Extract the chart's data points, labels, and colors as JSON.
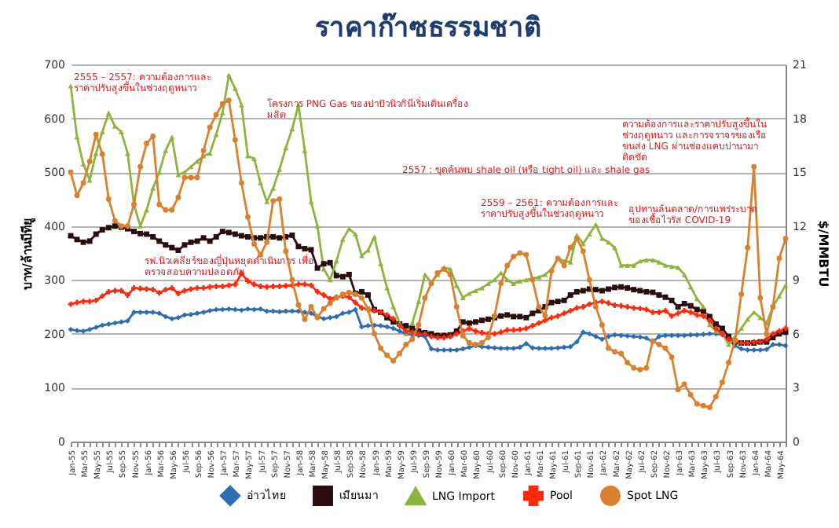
{
  "chart_data": {
    "type": "line",
    "title": "ราคาก๊าซธรรมชาติ",
    "ylabel": "บาท/ล้านบีทียู",
    "y2label": "$/MMBTU",
    "categories": [
      "Jan-55",
      null,
      "Mar-55",
      null,
      "May-55",
      null,
      "Jul-55",
      null,
      "Sep-55",
      null,
      "Nov-55",
      null,
      "Jan-56",
      null,
      "Mar-56",
      null,
      "May-56",
      null,
      "Jul-56",
      null,
      "Sep-56",
      null,
      "Nov-56",
      null,
      "Jan-57",
      null,
      "Mar-57",
      null,
      "May-57",
      null,
      "Jul-57",
      null,
      "Sep-57",
      null,
      "Nov-57",
      null,
      "Jan-58",
      null,
      "Mar-58",
      null,
      "May-58",
      null,
      "Jul-58",
      null,
      "Sep-58",
      null,
      "Nov-58",
      null,
      "Jan-59",
      null,
      "Mar-59",
      null,
      "May-59",
      null,
      "Jul-59",
      null,
      "Sep-59",
      null,
      "Nov-59",
      null,
      "Jan-60",
      null,
      "Mar-60",
      null,
      "May-60",
      null,
      "Jul-60",
      null,
      "Sep-60",
      null,
      "Nov-60",
      null,
      "Jan-61",
      null,
      "Mar-61",
      null,
      "May-61",
      null,
      "Jul-61",
      null,
      "Sep-61",
      null,
      "Nov-61",
      null,
      "Jan-62",
      null,
      "Mar-62",
      null,
      "May-62",
      null,
      "Jul-62",
      null,
      "Sep-62",
      null,
      "Nov-62",
      null,
      "Jan-63",
      null,
      "Mar-63",
      null,
      "May-63",
      null,
      "Jul-63",
      null,
      "Sep-63",
      null,
      "Nov-63",
      null,
      "Jan-64",
      null,
      "Mar-64",
      null,
      "May-64",
      null
    ],
    "series": [
      {
        "name": "อ่าวไทย",
        "color": "#2e6db4",
        "marker": "diamond",
        "values": [
          208,
          206,
          205,
          208,
          212,
          216,
          218,
          220,
          222,
          224,
          240,
          240,
          240,
          240,
          238,
          232,
          228,
          230,
          235,
          236,
          238,
          240,
          243,
          245,
          245,
          246,
          245,
          244,
          246,
          245,
          246,
          242,
          242,
          241,
          242,
          242,
          242,
          240,
          238,
          232,
          228,
          230,
          232,
          238,
          240,
          245,
          213,
          215,
          216,
          215,
          213,
          210,
          205,
          200,
          198,
          197,
          195,
          172,
          170,
          170,
          170,
          170,
          172,
          175,
          178,
          176,
          175,
          174,
          173,
          173,
          173,
          175,
          182,
          174,
          173,
          173,
          173,
          174,
          175,
          176,
          185,
          203,
          200,
          195,
          190,
          195,
          198,
          197,
          196,
          195,
          194,
          192,
          185,
          195,
          197,
          197,
          197,
          197,
          198,
          198,
          199,
          200,
          200,
          198,
          190,
          178,
          172,
          170,
          170,
          170,
          171,
          180,
          180,
          178
        ]
      },
      {
        "name": "เมียนมา",
        "color": "#2a0d0d",
        "marker": "square",
        "values": [
          382,
          375,
          370,
          372,
          385,
          393,
          397,
          400,
          398,
          395,
          390,
          386,
          385,
          380,
          372,
          365,
          360,
          355,
          365,
          370,
          372,
          378,
          372,
          380,
          390,
          388,
          385,
          382,
          380,
          378,
          378,
          380,
          380,
          378,
          380,
          383,
          362,
          358,
          356,
          322,
          330,
          332,
          308,
          306,
          310,
          275,
          278,
          272,
          245,
          240,
          230,
          222,
          218,
          215,
          210,
          205,
          202,
          200,
          197,
          197,
          198,
          205,
          222,
          220,
          222,
          225,
          227,
          230,
          233,
          235,
          232,
          232,
          230,
          238,
          243,
          250,
          258,
          260,
          262,
          272,
          278,
          280,
          283,
          282,
          280,
          283,
          286,
          287,
          285,
          282,
          280,
          278,
          277,
          272,
          268,
          262,
          250,
          256,
          252,
          245,
          242,
          232,
          218,
          210,
          195,
          185,
          183,
          183,
          183,
          185,
          185,
          193,
          200,
          203
        ]
      },
      {
        "name": "LNG Import",
        "color": "#8db43e",
        "marker": "triangle",
        "values": [
          660,
          565,
          515,
          485,
          535,
          575,
          610,
          585,
          575,
          535,
          440,
          400,
          430,
          470,
          500,
          540,
          565,
          495,
          500,
          510,
          520,
          530,
          535,
          570,
          610,
          680,
          655,
          625,
          530,
          525,
          480,
          445,
          470,
          505,
          545,
          580,
          625,
          540,
          445,
          400,
          320,
          300,
          335,
          375,
          395,
          385,
          345,
          355,
          380,
          330,
          285,
          250,
          220,
          200,
          220,
          260,
          310,
          295,
          310,
          323,
          320,
          290,
          267,
          275,
          280,
          285,
          293,
          300,
          313,
          300,
          293,
          298,
          300,
          303,
          305,
          310,
          320,
          340,
          335,
          333,
          383,
          367,
          385,
          403,
          377,
          370,
          360,
          327,
          327,
          327,
          335,
          337,
          337,
          333,
          327,
          325,
          323,
          310,
          287,
          265,
          250,
          217,
          205,
          200,
          180,
          195,
          210,
          227,
          240,
          230,
          220,
          250,
          270,
          290
        ]
      },
      {
        "name": "Pool",
        "color": "#ff2a0a",
        "marker": "cross",
        "values": [
          255,
          258,
          260,
          260,
          262,
          270,
          278,
          280,
          280,
          272,
          285,
          284,
          283,
          282,
          276,
          282,
          285,
          275,
          280,
          283,
          285,
          285,
          287,
          288,
          288,
          290,
          292,
          312,
          298,
          292,
          288,
          287,
          288,
          288,
          289,
          290,
          292,
          292,
          290,
          278,
          272,
          265,
          268,
          270,
          268,
          258,
          248,
          245,
          243,
          240,
          235,
          228,
          215,
          205,
          203,
          200,
          200,
          195,
          193,
          193,
          195,
          200,
          205,
          210,
          205,
          202,
          200,
          200,
          203,
          207,
          207,
          208,
          210,
          215,
          220,
          225,
          230,
          233,
          238,
          243,
          248,
          250,
          255,
          258,
          260,
          257,
          253,
          252,
          250,
          248,
          247,
          245,
          240,
          240,
          243,
          233,
          238,
          243,
          240,
          235,
          233,
          225,
          210,
          200,
          190,
          187,
          183,
          183,
          185,
          185,
          190,
          200,
          205,
          210
        ]
      },
      {
        "name": "Spot LNG",
        "color": "#d9812e",
        "marker": "circle",
        "axis": "y2",
        "values": [
          15.0,
          13.7,
          14.4,
          15.6,
          17.1,
          16.0,
          13.5,
          12.3,
          12.0,
          12.0,
          13.2,
          15.3,
          16.6,
          17.0,
          13.2,
          12.9,
          12.9,
          13.6,
          14.7,
          14.7,
          14.7,
          16.2,
          17.5,
          18.2,
          18.8,
          19.0,
          16.8,
          14.4,
          12.5,
          11.0,
          10.4,
          11.1,
          13.4,
          13.5,
          10.6,
          9.0,
          7.6,
          6.8,
          7.5,
          6.9,
          7.4,
          7.7,
          8.0,
          8.2,
          8.3,
          8.2,
          8.0,
          7.4,
          6.0,
          5.2,
          4.8,
          4.5,
          4.9,
          5.4,
          5.7,
          6.5,
          8.0,
          8.8,
          9.4,
          9.6,
          9.3,
          7.5,
          5.9,
          5.5,
          5.4,
          5.5,
          5.8,
          7.0,
          8.8,
          9.8,
          10.3,
          10.5,
          10.4,
          9.0,
          7.5,
          7.0,
          9.5,
          10.2,
          9.8,
          10.8,
          11.3,
          10.6,
          9.0,
          7.5,
          6.5,
          5.2,
          5.0,
          4.9,
          4.4,
          4.1,
          4.0,
          4.1,
          5.6,
          5.4,
          5.2,
          4.7,
          2.9,
          3.2,
          2.6,
          2.1,
          2.0,
          1.9,
          2.5,
          3.3,
          4.4,
          5.6,
          8.2,
          10.8,
          15.3,
          8.0,
          6.0,
          7.5,
          10.2,
          11.3
        ]
      }
    ],
    "ylim": [
      0,
      700
    ],
    "yticks": [
      0,
      100,
      200,
      300,
      400,
      500,
      600,
      700
    ],
    "y2lim": [
      0,
      21
    ],
    "y2ticks": [
      0,
      3,
      6,
      9,
      12,
      15,
      18,
      21
    ],
    "grid": "y",
    "legend": "bottom",
    "line_style": "solid",
    "annotations": [
      "2555 – 2557: ความต้องการและราคาปรับสูงขึ้นในช่วงฤดูหนาว",
      "โครงการ PNG Gas ของปาปัวนิวกินีเริ่มเดินเครื่องผลิต",
      "2557 : ขุดค้นพบ shale oil (หรือ tight oil) และ shale gas",
      "รฟ.นิวเคลียร์ของญี่ปุ่นหยุดดำเนินการ เพื่อตรวจสอบความปลอดภัย",
      "2559 – 2561: ความต้องการและราคาปรับสูงขึ้นในช่วงฤดูหนาว",
      "อุปทานล้นตลาด/การแพร่ระบาดของเชื้อไวรัส COVID-19",
      "ความต้องการและราคาปรับสูงขึ้นในช่วงฤดูหนาว และการจราจรของเรือขนส่ง LNG ผ่านช่องแคบปานามาติดขัด"
    ]
  }
}
